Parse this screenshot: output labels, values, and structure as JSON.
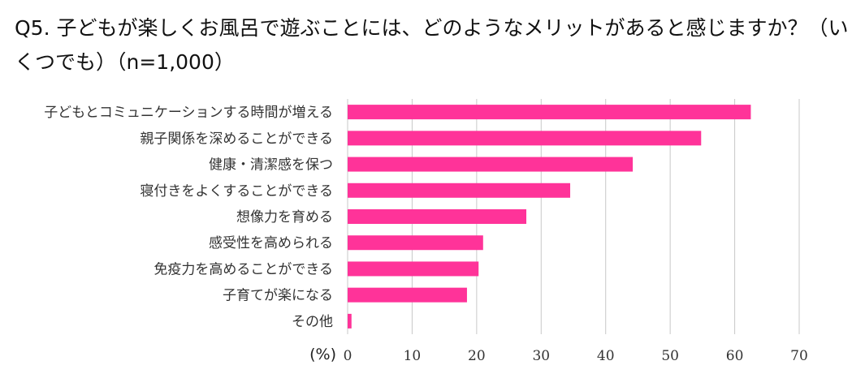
{
  "chart_data": {
    "type": "bar",
    "orientation": "horizontal",
    "title": "Q5. 子どもが楽しくお風呂で遊ぶことには、どのようなメリットがあると感じますか？（いくつでも）（n=1,000）",
    "categories": [
      "子どもとコミュニケーションする時間が増える",
      "親子関係を深めることができる",
      "健康・清潔感を保つ",
      "寝付きをよくすることができる",
      "想像力を育める",
      "感受性を高められる",
      "免疫力を高めることができる",
      "子育てが楽になる",
      "その他"
    ],
    "values": [
      62.5,
      54.8,
      44.2,
      34.5,
      27.7,
      21.0,
      20.3,
      18.5,
      0.6
    ],
    "xlabel": "(%)",
    "ylabel": "",
    "xlim": [
      0,
      70
    ],
    "ticks": [
      0,
      10,
      20,
      30,
      40,
      50,
      60,
      70
    ],
    "grid": true,
    "legend": "none",
    "bar_color": "#ff3399",
    "grid_color": "#c8c8c8"
  }
}
